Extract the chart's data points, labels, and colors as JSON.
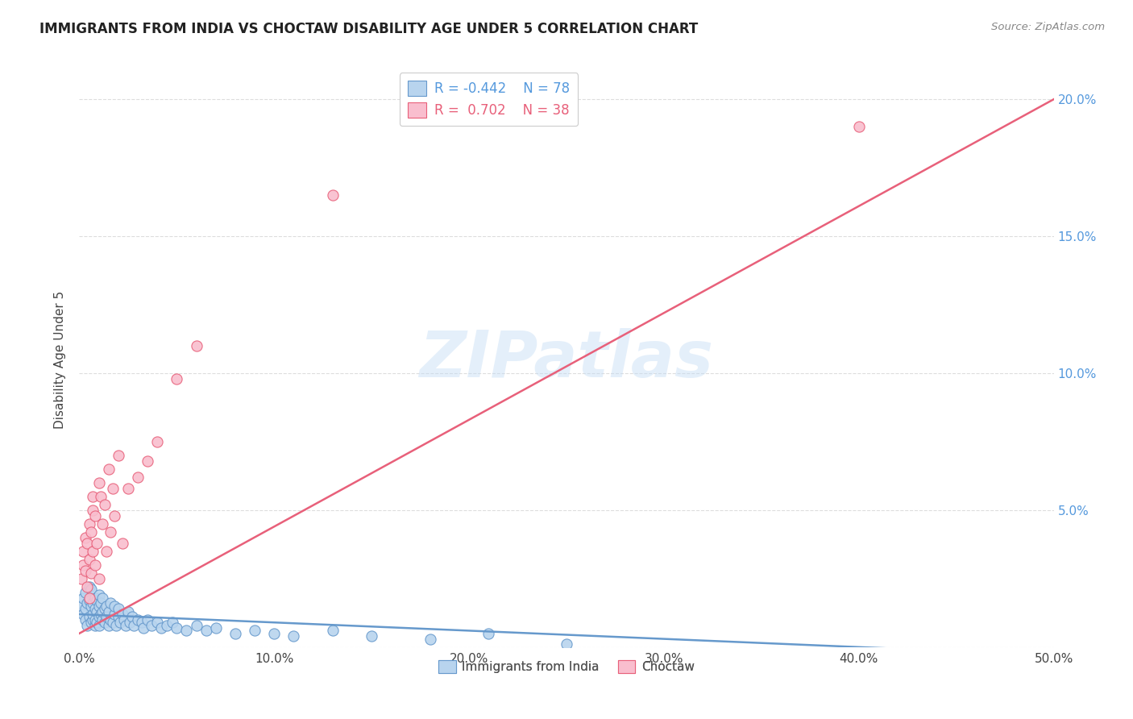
{
  "title": "IMMIGRANTS FROM INDIA VS CHOCTAW DISABILITY AGE UNDER 5 CORRELATION CHART",
  "source": "Source: ZipAtlas.com",
  "ylabel": "Disability Age Under 5",
  "xlim": [
    0.0,
    0.5
  ],
  "ylim": [
    0.0,
    0.21
  ],
  "xticks": [
    0.0,
    0.1,
    0.2,
    0.3,
    0.4,
    0.5
  ],
  "xticklabels": [
    "0.0%",
    "10.0%",
    "20.0%",
    "30.0%",
    "40.0%",
    "50.0%"
  ],
  "yticks_right": [
    0.0,
    0.05,
    0.1,
    0.15,
    0.2
  ],
  "yticklabels_right": [
    "",
    "5.0%",
    "10.0%",
    "15.0%",
    "20.0%"
  ],
  "series1_color": "#b8d4ee",
  "series2_color": "#f9bece",
  "line1_color": "#6699cc",
  "line2_color": "#e8607a",
  "watermark": "ZIPatlas",
  "background_color": "#ffffff",
  "grid_color": "#dddddd",
  "blue_x": [
    0.001,
    0.002,
    0.002,
    0.003,
    0.003,
    0.003,
    0.004,
    0.004,
    0.005,
    0.005,
    0.005,
    0.006,
    0.006,
    0.006,
    0.007,
    0.007,
    0.007,
    0.008,
    0.008,
    0.008,
    0.008,
    0.009,
    0.009,
    0.009,
    0.01,
    0.01,
    0.01,
    0.01,
    0.011,
    0.011,
    0.012,
    0.012,
    0.012,
    0.013,
    0.013,
    0.014,
    0.014,
    0.015,
    0.015,
    0.016,
    0.016,
    0.017,
    0.018,
    0.018,
    0.019,
    0.02,
    0.02,
    0.021,
    0.022,
    0.023,
    0.024,
    0.025,
    0.026,
    0.027,
    0.028,
    0.03,
    0.032,
    0.033,
    0.035,
    0.037,
    0.04,
    0.042,
    0.045,
    0.048,
    0.05,
    0.055,
    0.06,
    0.065,
    0.07,
    0.08,
    0.09,
    0.1,
    0.11,
    0.13,
    0.15,
    0.18,
    0.21,
    0.25
  ],
  "blue_y": [
    0.015,
    0.012,
    0.018,
    0.01,
    0.014,
    0.02,
    0.008,
    0.016,
    0.011,
    0.017,
    0.022,
    0.009,
    0.015,
    0.021,
    0.01,
    0.016,
    0.012,
    0.008,
    0.014,
    0.018,
    0.01,
    0.013,
    0.017,
    0.009,
    0.011,
    0.015,
    0.019,
    0.008,
    0.012,
    0.016,
    0.01,
    0.013,
    0.018,
    0.009,
    0.014,
    0.011,
    0.015,
    0.008,
    0.013,
    0.01,
    0.016,
    0.009,
    0.012,
    0.015,
    0.008,
    0.011,
    0.014,
    0.009,
    0.012,
    0.01,
    0.008,
    0.013,
    0.009,
    0.011,
    0.008,
    0.01,
    0.009,
    0.007,
    0.01,
    0.008,
    0.009,
    0.007,
    0.008,
    0.009,
    0.007,
    0.006,
    0.008,
    0.006,
    0.007,
    0.005,
    0.006,
    0.005,
    0.004,
    0.006,
    0.004,
    0.003,
    0.005,
    0.001
  ],
  "pink_x": [
    0.001,
    0.002,
    0.002,
    0.003,
    0.003,
    0.004,
    0.004,
    0.005,
    0.005,
    0.005,
    0.006,
    0.006,
    0.007,
    0.007,
    0.007,
    0.008,
    0.008,
    0.009,
    0.01,
    0.01,
    0.011,
    0.012,
    0.013,
    0.014,
    0.015,
    0.016,
    0.017,
    0.018,
    0.02,
    0.022,
    0.025,
    0.03,
    0.035,
    0.04,
    0.05,
    0.06,
    0.13,
    0.4
  ],
  "pink_y": [
    0.025,
    0.03,
    0.035,
    0.028,
    0.04,
    0.022,
    0.038,
    0.032,
    0.045,
    0.018,
    0.042,
    0.027,
    0.05,
    0.035,
    0.055,
    0.03,
    0.048,
    0.038,
    0.06,
    0.025,
    0.055,
    0.045,
    0.052,
    0.035,
    0.065,
    0.042,
    0.058,
    0.048,
    0.07,
    0.038,
    0.058,
    0.062,
    0.068,
    0.075,
    0.098,
    0.11,
    0.165,
    0.19
  ],
  "blue_line_x": [
    0.0,
    0.5
  ],
  "blue_line_y": [
    0.012,
    -0.003
  ],
  "pink_line_x": [
    0.0,
    0.5
  ],
  "pink_line_y": [
    0.005,
    0.2
  ]
}
